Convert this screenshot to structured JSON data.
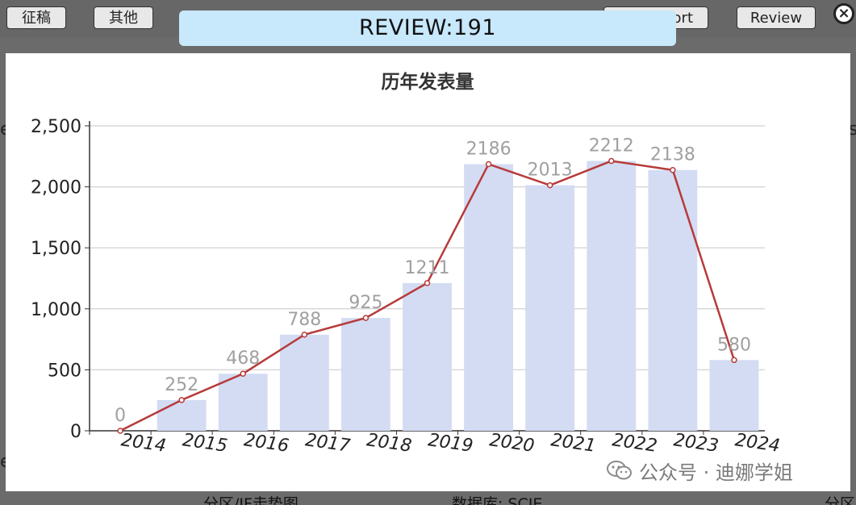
{
  "background": {
    "buttons": [
      "征稿",
      "其他",
      "Export",
      "Review"
    ],
    "bottom_left": "分区/IF走势图",
    "bottom_mid": "数据库: SCIE",
    "bottom_right": "分区"
  },
  "dialog": {
    "title": "REVIEW:191"
  },
  "watermark": {
    "text": "公众号 · 迪娜学姐",
    "icon": "wechat-icon"
  },
  "colors": {
    "bar": "#d3dcf2",
    "line": "#b73a3a",
    "banner": "#c8e8fb"
  },
  "chart_data": {
    "type": "bar",
    "title": "历年发表量",
    "categories": [
      "2014",
      "2015",
      "2016",
      "2017",
      "2018",
      "2019",
      "2020",
      "2021",
      "2022",
      "2023",
      "2024"
    ],
    "values": [
      0,
      252,
      468,
      788,
      925,
      1211,
      2186,
      2013,
      2212,
      2138,
      580
    ],
    "value_labels": [
      "0",
      "252",
      "468",
      "788",
      "925",
      "1211",
      "2186",
      "2013",
      "2212",
      "2138",
      "580"
    ],
    "overlay": "line",
    "ylim": [
      0,
      2500
    ],
    "yticks": [
      0,
      500,
      1000,
      1500,
      2000,
      2500
    ],
    "ytick_labels": [
      "0",
      "500",
      "1,000",
      "1,500",
      "2,000",
      "2,500"
    ],
    "grid": true
  }
}
